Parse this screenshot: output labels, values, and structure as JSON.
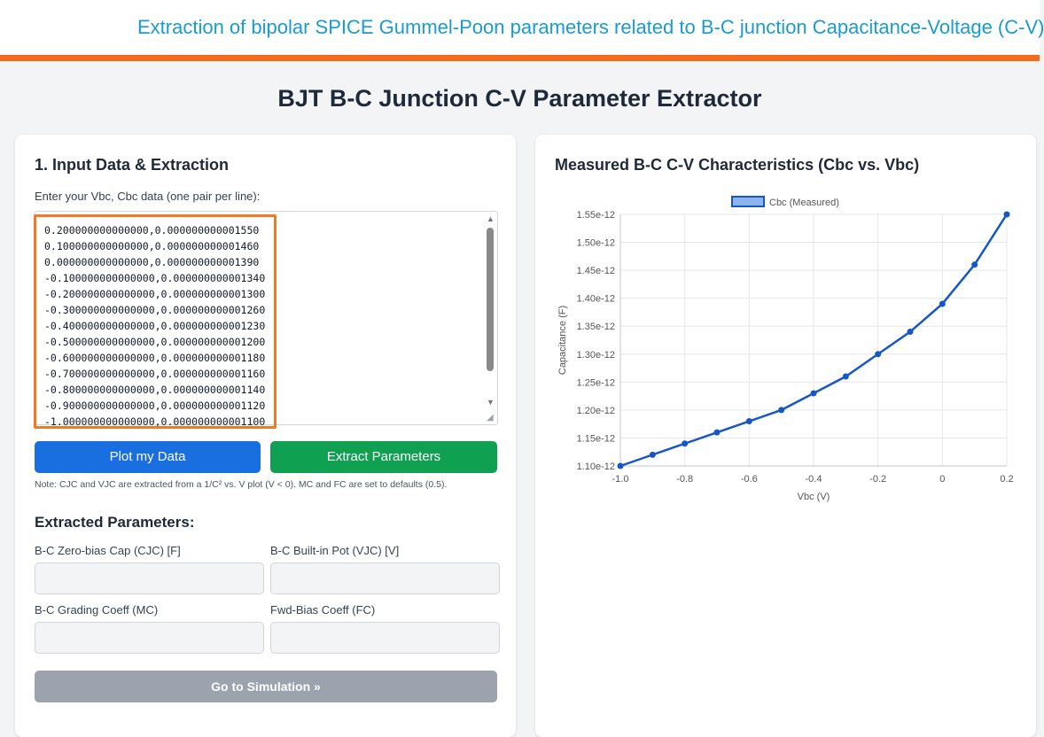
{
  "banner": {
    "text": "Extraction of bipolar SPICE Gummel-Poon parameters related to B-C junction Capacitance-Voltage (C-V)",
    "text_color": "#1b9bd1",
    "bar_color": "#f26a1b"
  },
  "page_title": "BJT B-C Junction C-V Parameter Extractor",
  "left_card": {
    "title": "1. Input Data & Extraction",
    "input_label": "Enter your Vbc, Cbc data (one pair per line):",
    "data_lines": [
      "0.200000000000000,0.000000000001550",
      "0.100000000000000,0.000000000001460",
      "0.000000000000000,0.000000000001390",
      "-0.100000000000000,0.000000000001340",
      "-0.200000000000000,0.000000000001300",
      "-0.300000000000000,0.000000000001260",
      "-0.400000000000000,0.000000000001230",
      "-0.500000000000000,0.000000000001200",
      "-0.600000000000000,0.000000000001180",
      "-0.700000000000000,0.000000000001160",
      "-0.800000000000000,0.000000000001140",
      "-0.900000000000000,0.000000000001120",
      "-1.000000000000000,0.000000000001100"
    ],
    "plot_button": "Plot my Data",
    "extract_button": "Extract Parameters",
    "note": "Note: CJC and VJC are extracted from a 1/C² vs. V plot (V < 0). MC and FC are set to defaults (0.5).",
    "extracted_title": "Extracted Parameters:",
    "fields": {
      "cjc_label": "B-C Zero-bias Cap (CJC) [F]",
      "cjc_value": "",
      "vjc_label": "B-C Built-in Pot (VJC) [V]",
      "vjc_value": "",
      "mc_label": "B-C Grading Coeff (MC)",
      "mc_value": "",
      "fc_label": "Fwd-Bias Coeff (FC)",
      "fc_value": ""
    },
    "simulation_button": "Go to Simulation »"
  },
  "right_card": {
    "title": "Measured B-C C-V Characteristics (Cbc vs. Vbc)"
  },
  "chart_data": {
    "type": "line",
    "x": [
      -1.0,
      -0.9,
      -0.8,
      -0.7,
      -0.6,
      -0.5,
      -0.4,
      -0.3,
      -0.2,
      -0.1,
      0.0,
      0.1,
      0.2
    ],
    "series": [
      {
        "name": "Cbc (Measured)",
        "values": [
          1.1e-12,
          1.12e-12,
          1.14e-12,
          1.16e-12,
          1.18e-12,
          1.2e-12,
          1.23e-12,
          1.26e-12,
          1.3e-12,
          1.34e-12,
          1.39e-12,
          1.46e-12,
          1.55e-12
        ],
        "color": "#1557c8"
      }
    ],
    "xlabel": "Vbc (V)",
    "ylabel": "Capacitance (F)",
    "xlim": [
      -1.0,
      0.2
    ],
    "ylim": [
      1.1e-12,
      1.55e-12
    ],
    "x_ticks": [
      "-1.0",
      "-0.8",
      "-0.6",
      "-0.4",
      "-0.2",
      "0",
      "0.2"
    ],
    "y_ticks": [
      "1.10e-12",
      "1.15e-12",
      "1.20e-12",
      "1.25e-12",
      "1.30e-12",
      "1.35e-12",
      "1.40e-12",
      "1.45e-12",
      "1.50e-12",
      "1.55e-12"
    ],
    "grid": true,
    "legend": "top-center"
  }
}
